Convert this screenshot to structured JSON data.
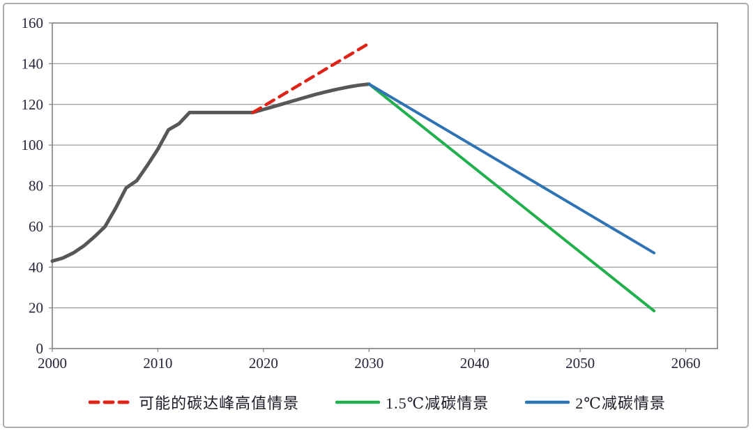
{
  "chart_data": {
    "type": "line",
    "title": "",
    "xlabel": "",
    "ylabel": "",
    "xlim": [
      2000,
      2063
    ],
    "ylim": [
      0,
      160
    ],
    "xticks": [
      2000,
      2010,
      2020,
      2030,
      2040,
      2050,
      2060
    ],
    "yticks": [
      0,
      20,
      40,
      60,
      80,
      100,
      120,
      140,
      160
    ],
    "grid": "horizontal",
    "legend_position": "bottom",
    "colors": {
      "grid": "#9b9b9b",
      "frame": "#7f7f7f",
      "tick_text": "#26263a",
      "background": "#ffffff",
      "outer_border": "#ababab"
    },
    "series": [
      {
        "id": "historical-emissions",
        "name": "",
        "in_legend": false,
        "color": "#575757",
        "style": "solid",
        "width": 5,
        "points": [
          [
            2000,
            43
          ],
          [
            2001,
            44.5
          ],
          [
            2002,
            47
          ],
          [
            2003,
            50.5
          ],
          [
            2004,
            55
          ],
          [
            2005,
            60
          ],
          [
            2006,
            69
          ],
          [
            2007,
            79
          ],
          [
            2008,
            82.5
          ],
          [
            2009,
            90
          ],
          [
            2010,
            98
          ],
          [
            2011,
            107.5
          ],
          [
            2012,
            110.5
          ],
          [
            2013,
            116
          ],
          [
            2014,
            116
          ],
          [
            2015,
            116
          ],
          [
            2016,
            116
          ],
          [
            2017,
            116
          ],
          [
            2018,
            116
          ],
          [
            2019,
            116
          ],
          [
            2020,
            117.5
          ],
          [
            2021,
            119
          ],
          [
            2022,
            120.5
          ],
          [
            2023,
            122
          ],
          [
            2024,
            123.5
          ],
          [
            2025,
            125
          ],
          [
            2026,
            126.3
          ],
          [
            2027,
            127.5
          ],
          [
            2028,
            128.5
          ],
          [
            2029,
            129.4
          ],
          [
            2030,
            130
          ]
        ]
      },
      {
        "id": "peak-high-scenario",
        "name": "可能的碳达峰高值情景",
        "in_legend": true,
        "color": "#de2418",
        "style": "dashed",
        "width": 4.5,
        "points": [
          [
            2019,
            116
          ],
          [
            2030,
            150
          ]
        ]
      },
      {
        "id": "scenario-1-5c",
        "name": "1.5℃减碳情景",
        "in_legend": true,
        "color": "#22b04e",
        "style": "solid",
        "width": 4,
        "points": [
          [
            2030,
            130
          ],
          [
            2057,
            18.5
          ]
        ]
      },
      {
        "id": "scenario-2c",
        "name": "2℃减碳情景",
        "in_legend": true,
        "color": "#2e74b5",
        "style": "solid",
        "width": 4,
        "points": [
          [
            2030,
            130
          ],
          [
            2057,
            47
          ]
        ]
      }
    ]
  }
}
